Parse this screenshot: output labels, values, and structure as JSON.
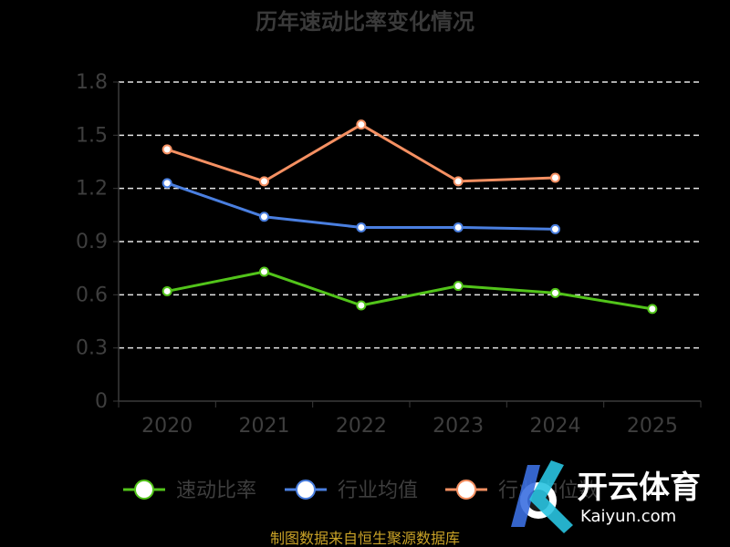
{
  "chart_data": {
    "type": "line",
    "title": "历年速动比率变化情况",
    "categories": [
      "2020",
      "2021",
      "2022",
      "2023",
      "2024",
      "2025"
    ],
    "y_ticks": [
      "0",
      "0.3",
      "0.6",
      "0.9",
      "1.2",
      "1.5",
      "1.8"
    ],
    "ylim": [
      0,
      1.8
    ],
    "grid": true,
    "legend_position": "bottom",
    "series": [
      {
        "name": "速动比率",
        "color": "#52c41a",
        "values": [
          0.62,
          0.73,
          0.54,
          0.65,
          0.61,
          0.52
        ]
      },
      {
        "name": "行业均值",
        "color": "#4a7fe0",
        "values": [
          1.23,
          1.04,
          0.98,
          0.98,
          0.97,
          null
        ]
      },
      {
        "name": "行业中位数",
        "color": "#f59062",
        "values": [
          1.42,
          1.24,
          1.56,
          1.24,
          1.26,
          null
        ]
      }
    ],
    "source": "制图数据来自恒生聚源数据库"
  },
  "watermark": {
    "brand_cn": "开云体育",
    "brand_en": "Kaiyun.com",
    "logo_letter": "K"
  }
}
